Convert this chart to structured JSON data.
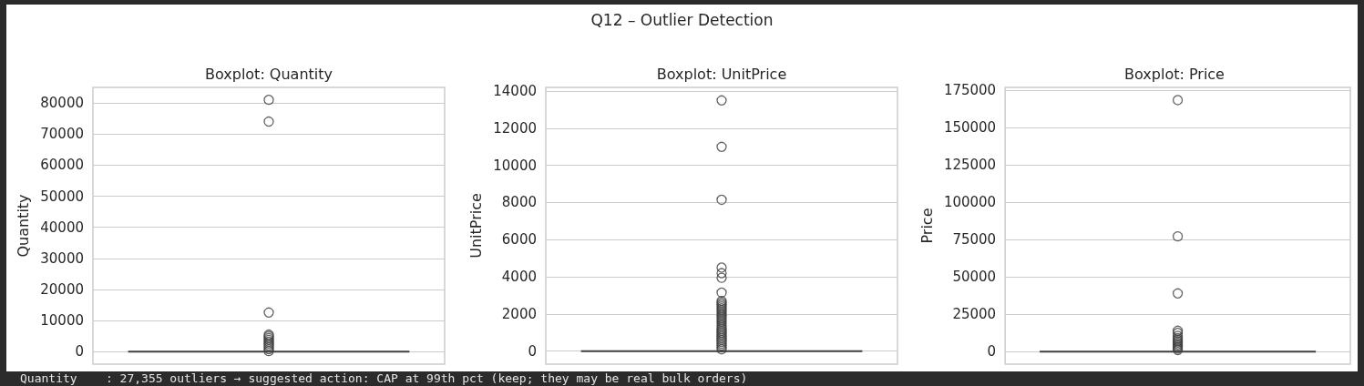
{
  "chart_data": [
    {
      "type": "box",
      "title": "Boxplot: Quantity",
      "ylabel": "Quantity",
      "categories": [
        null
      ],
      "color": "#3f3f3f",
      "boxes": [
        {
          "q1": 0,
          "q3": 0,
          "outliers": [
            81000,
            74000,
            12600,
            5500,
            5000,
            4400,
            3800,
            3200,
            2600,
            2000,
            1400,
            800,
            200
          ]
        }
      ],
      "ylim": [
        -4000,
        85000
      ],
      "yticks": [
        0,
        10000,
        20000,
        30000,
        40000,
        50000,
        60000,
        70000,
        80000
      ],
      "grid": "y",
      "annotations": [
        "Q12 – Outlier Detection",
        "Quantity    : 27,355 outliers → suggested action: CAP at 99th pct (keep; they may be real bulk orders)"
      ]
    },
    {
      "type": "box",
      "title": "Boxplot: UnitPrice",
      "ylabel": "UnitPrice",
      "categories": [
        null
      ],
      "color": "#3f3f3f",
      "boxes": [
        {
          "q1": 0,
          "q3": 0,
          "outliers": [
            13500,
            11000,
            8150,
            4500,
            4200,
            3950,
            3150,
            2700,
            2600,
            2500,
            2400,
            2300,
            2200,
            2100,
            2000,
            1900,
            1800,
            1700,
            1600,
            1500,
            1400,
            1300,
            1200,
            1100,
            1000,
            900,
            800,
            700,
            600,
            500,
            400,
            300,
            200,
            100
          ]
        }
      ],
      "ylim": [
        -700,
        14200
      ],
      "yticks": [
        0,
        2000,
        4000,
        6000,
        8000,
        10000,
        12000,
        14000
      ],
      "grid": "y"
    },
    {
      "type": "box",
      "title": "Boxplot: Price",
      "ylabel": "Price",
      "categories": [
        null
      ],
      "color": "#3f3f3f",
      "boxes": [
        {
          "q1": 0,
          "q3": 0,
          "outliers": [
            168500,
            77200,
            39000,
            14000,
            12500,
            10500,
            9000,
            8000,
            7000,
            6000,
            5000,
            4000,
            3000,
            2000,
            1000
          ]
        }
      ],
      "ylim": [
        -8400,
        177000
      ],
      "yticks": [
        0,
        25000,
        50000,
        75000,
        100000,
        125000,
        150000,
        175000
      ],
      "grid": "y"
    }
  ]
}
